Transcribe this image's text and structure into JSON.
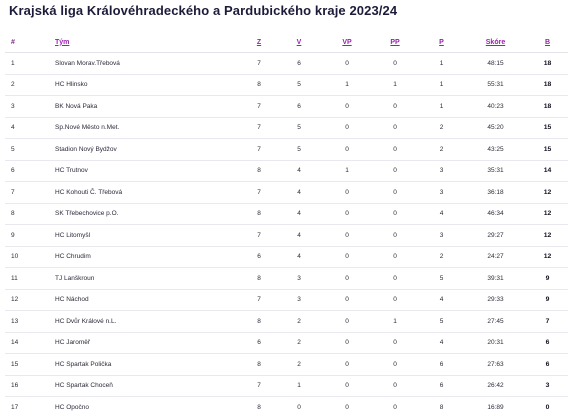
{
  "title": "Krajská liga Královéhradeckého a Pardubického kraje 2023/24",
  "columns": {
    "rank": "#",
    "team": "Tým",
    "played": "Z",
    "wins": "V",
    "ot_wins": "VP",
    "ot_losses": "PP",
    "losses": "P",
    "score": "Skóre",
    "points": "B"
  },
  "rows": [
    {
      "rank": "1",
      "team": "Slovan Morav.Třebová",
      "played": "7",
      "wins": "6",
      "ot_wins": "0",
      "ot_losses": "0",
      "losses": "1",
      "score": "48:15",
      "points": "18"
    },
    {
      "rank": "2",
      "team": "HC Hlinsko",
      "played": "8",
      "wins": "5",
      "ot_wins": "1",
      "ot_losses": "1",
      "losses": "1",
      "score": "55:31",
      "points": "18"
    },
    {
      "rank": "3",
      "team": "BK Nová Paka",
      "played": "7",
      "wins": "6",
      "ot_wins": "0",
      "ot_losses": "0",
      "losses": "1",
      "score": "40:23",
      "points": "18"
    },
    {
      "rank": "4",
      "team": "Sp.Nové Město n.Met.",
      "played": "7",
      "wins": "5",
      "ot_wins": "0",
      "ot_losses": "0",
      "losses": "2",
      "score": "45:20",
      "points": "15"
    },
    {
      "rank": "5",
      "team": "Stadion Nový Bydžov",
      "played": "7",
      "wins": "5",
      "ot_wins": "0",
      "ot_losses": "0",
      "losses": "2",
      "score": "43:25",
      "points": "15"
    },
    {
      "rank": "6",
      "team": "HC Trutnov",
      "played": "8",
      "wins": "4",
      "ot_wins": "1",
      "ot_losses": "0",
      "losses": "3",
      "score": "35:31",
      "points": "14"
    },
    {
      "rank": "7",
      "team": "HC Kohouti Č. Třebová",
      "played": "7",
      "wins": "4",
      "ot_wins": "0",
      "ot_losses": "0",
      "losses": "3",
      "score": "36:18",
      "points": "12"
    },
    {
      "rank": "8",
      "team": "SK Třebechovice p.O.",
      "played": "8",
      "wins": "4",
      "ot_wins": "0",
      "ot_losses": "0",
      "losses": "4",
      "score": "46:34",
      "points": "12"
    },
    {
      "rank": "9",
      "team": "HC Litomyšl",
      "played": "7",
      "wins": "4",
      "ot_wins": "0",
      "ot_losses": "0",
      "losses": "3",
      "score": "29:27",
      "points": "12"
    },
    {
      "rank": "10",
      "team": "HC Chrudim",
      "played": "6",
      "wins": "4",
      "ot_wins": "0",
      "ot_losses": "0",
      "losses": "2",
      "score": "24:27",
      "points": "12"
    },
    {
      "rank": "11",
      "team": "TJ Lanškroun",
      "played": "8",
      "wins": "3",
      "ot_wins": "0",
      "ot_losses": "0",
      "losses": "5",
      "score": "39:31",
      "points": "9"
    },
    {
      "rank": "12",
      "team": "HC Náchod",
      "played": "7",
      "wins": "3",
      "ot_wins": "0",
      "ot_losses": "0",
      "losses": "4",
      "score": "29:33",
      "points": "9"
    },
    {
      "rank": "13",
      "team": "HC Dvůr Králové n.L.",
      "played": "8",
      "wins": "2",
      "ot_wins": "0",
      "ot_losses": "1",
      "losses": "5",
      "score": "27:45",
      "points": "7"
    },
    {
      "rank": "14",
      "team": "HC Jaroměř",
      "played": "6",
      "wins": "2",
      "ot_wins": "0",
      "ot_losses": "0",
      "losses": "4",
      "score": "20:31",
      "points": "6"
    },
    {
      "rank": "15",
      "team": "HC Spartak Polička",
      "played": "8",
      "wins": "2",
      "ot_wins": "0",
      "ot_losses": "0",
      "losses": "6",
      "score": "27:63",
      "points": "6"
    },
    {
      "rank": "16",
      "team": "HC Spartak Choceň",
      "played": "7",
      "wins": "1",
      "ot_wins": "0",
      "ot_losses": "0",
      "losses": "6",
      "score": "26:42",
      "points": "3"
    },
    {
      "rank": "17",
      "team": "HC Opočno",
      "played": "8",
      "wins": "0",
      "ot_wins": "0",
      "ot_losses": "0",
      "losses": "8",
      "score": "16:89",
      "points": "0"
    }
  ]
}
